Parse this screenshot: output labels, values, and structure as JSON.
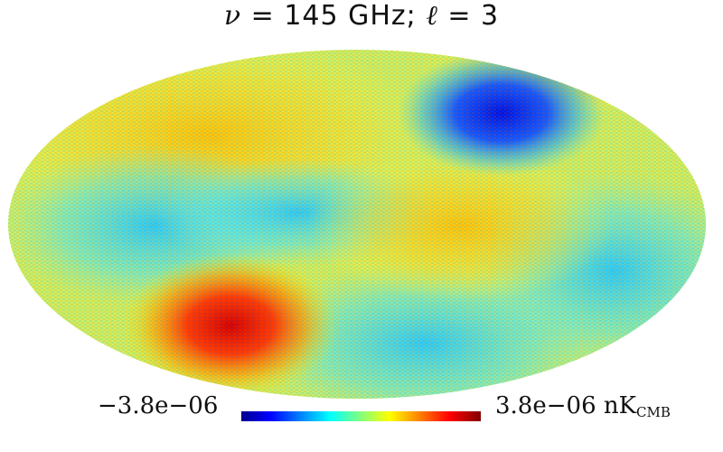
{
  "title": {
    "nu_symbol": "ν",
    "freq_text": " = 145 GHz; ",
    "ell_symbol": "ℓ",
    "ell_text": " = 3"
  },
  "map": {
    "projection": "mollweide",
    "multipole": 3,
    "frequency_ghz": 145,
    "colormap": [
      "#00008f",
      "#0000ff",
      "#00ffff",
      "#ffff00",
      "#ff0000",
      "#800000"
    ]
  },
  "colorbar": {
    "min_label": "−3.8e−06",
    "max_label": "3.8e−06",
    "unit": "nK",
    "unit_sub": "CMB",
    "min_value": -3.8e-06,
    "max_value": 3.8e-06
  }
}
